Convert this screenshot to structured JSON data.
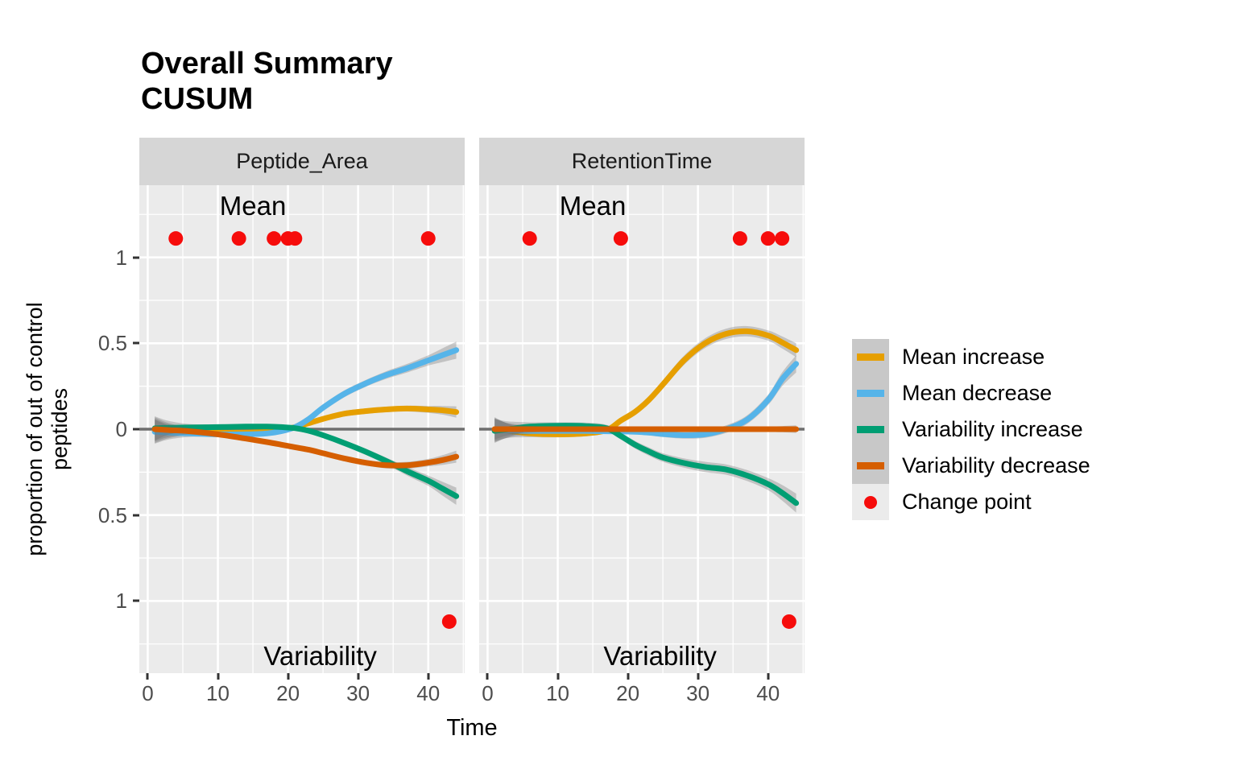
{
  "title": {
    "line1": "Overall Summary",
    "line2": "CUSUM"
  },
  "axes": {
    "x_label": "Time",
    "y_label_line1": "proportion of out of control",
    "y_label_line2": "peptides",
    "x_ticks": [
      0,
      10,
      20,
      30,
      40
    ],
    "y_ticks": [
      {
        "value": 1,
        "label": "1"
      },
      {
        "value": 0.5,
        "label": "0.5"
      },
      {
        "value": 0,
        "label": "0"
      },
      {
        "value": -0.5,
        "label": "0.5"
      },
      {
        "value": -1,
        "label": "1"
      }
    ]
  },
  "colors": {
    "panel_bg": "#ebebeb",
    "strip_bg": "#d6d6d6",
    "grid": "#ffffff",
    "zero_line": "#6e6e6e",
    "ribbon": "rgba(100,100,100,0.30)",
    "tick_text": "#4d4d4d",
    "mean_increase": "#E69F00",
    "mean_decrease": "#56B4E9",
    "variability_increase": "#009E73",
    "variability_decrease": "#D55E00",
    "change_point": "#F60C0B"
  },
  "legend": {
    "items": [
      {
        "label": "Mean increase",
        "type": "line",
        "color": "#E69F00"
      },
      {
        "label": "Mean decrease",
        "type": "line",
        "color": "#56B4E9"
      },
      {
        "label": "Variability increase",
        "type": "line",
        "color": "#009E73"
      },
      {
        "label": "Variability decrease",
        "type": "line",
        "color": "#D55E00"
      },
      {
        "label": "Change point",
        "type": "point",
        "color": "#F60C0B"
      }
    ]
  },
  "chart_data": {
    "type": "line",
    "title": "Overall Summary CUSUM",
    "xlabel": "Time",
    "ylabel": "proportion of out of control peptides",
    "x_domain": [
      -1.2,
      45.2
    ],
    "y_domain": [
      -1.42,
      1.42
    ],
    "x_major_ticks": [
      0,
      10,
      20,
      30,
      40
    ],
    "x_minor_ticks": [
      5,
      15,
      25,
      35,
      45
    ],
    "y_major_ticks": [
      -1,
      -0.5,
      0,
      0.5,
      1
    ],
    "y_minor_ticks": [
      -1.25,
      -0.75,
      -0.25,
      0.25,
      0.75,
      1.25
    ],
    "zero_line": 0,
    "change_point_value": {
      "mean": 1.11,
      "variability": -1.12
    },
    "facets": [
      {
        "title": "Peptide_Area",
        "annotations": [
          {
            "text": "Mean",
            "t": 15,
            "v": 1.3
          },
          {
            "text": "Variability",
            "t": 24.6,
            "v": -1.32
          }
        ],
        "change_points_mean": [
          4,
          13,
          18,
          20,
          21,
          40
        ],
        "change_points_variability": [
          43
        ],
        "series": [
          {
            "name": "Mean increase",
            "color": "#E69F00",
            "points": [
              [
                1,
                -0.01,
                0.07
              ],
              [
                3,
                -0.012,
                0.04
              ],
              [
                6,
                -0.015,
                0.02
              ],
              [
                10,
                -0.02,
                0.016
              ],
              [
                14,
                -0.02,
                0.015
              ],
              [
                17,
                -0.015,
                0.015
              ],
              [
                19,
                -0.005,
                0.015
              ],
              [
                21,
                0.012,
                0.015
              ],
              [
                23,
                0.035,
                0.015
              ],
              [
                25,
                0.06,
                0.015
              ],
              [
                28,
                0.09,
                0.016
              ],
              [
                31,
                0.105,
                0.016
              ],
              [
                34,
                0.115,
                0.016
              ],
              [
                37,
                0.12,
                0.017
              ],
              [
                40,
                0.115,
                0.02
              ],
              [
                42,
                0.11,
                0.025
              ],
              [
                44,
                0.1,
                0.033
              ]
            ]
          },
          {
            "name": "Mean decrease",
            "color": "#56B4E9",
            "points": [
              [
                1,
                -0.015,
                0.07
              ],
              [
                3,
                -0.02,
                0.04
              ],
              [
                6,
                -0.025,
                0.02
              ],
              [
                10,
                -0.03,
                0.016
              ],
              [
                14,
                -0.03,
                0.015
              ],
              [
                17,
                -0.025,
                0.015
              ],
              [
                19,
                -0.012,
                0.016
              ],
              [
                21,
                0.012,
                0.018
              ],
              [
                23,
                0.06,
                0.02
              ],
              [
                25,
                0.125,
                0.02
              ],
              [
                28,
                0.205,
                0.02
              ],
              [
                31,
                0.265,
                0.02
              ],
              [
                34,
                0.315,
                0.022
              ],
              [
                37,
                0.355,
                0.025
              ],
              [
                40,
                0.4,
                0.03
              ],
              [
                42,
                0.43,
                0.04
              ],
              [
                44,
                0.46,
                0.05
              ]
            ]
          },
          {
            "name": "Variability increase",
            "color": "#009E73",
            "points": [
              [
                1,
                0.005,
                0.07
              ],
              [
                3,
                0.008,
                0.04
              ],
              [
                6,
                0.01,
                0.02
              ],
              [
                10,
                0.012,
                0.016
              ],
              [
                14,
                0.015,
                0.015
              ],
              [
                17,
                0.015,
                0.015
              ],
              [
                19,
                0.012,
                0.015
              ],
              [
                21,
                0.006,
                0.015
              ],
              [
                23,
                -0.01,
                0.015
              ],
              [
                25,
                -0.035,
                0.015
              ],
              [
                28,
                -0.08,
                0.016
              ],
              [
                31,
                -0.13,
                0.018
              ],
              [
                34,
                -0.185,
                0.02
              ],
              [
                37,
                -0.245,
                0.025
              ],
              [
                40,
                -0.3,
                0.03
              ],
              [
                42,
                -0.345,
                0.04
              ],
              [
                44,
                -0.39,
                0.05
              ]
            ]
          },
          {
            "name": "Variability decrease",
            "color": "#D55E00",
            "points": [
              [
                1,
                0.0,
                0.07
              ],
              [
                3,
                -0.005,
                0.04
              ],
              [
                6,
                -0.012,
                0.02
              ],
              [
                10,
                -0.03,
                0.016
              ],
              [
                14,
                -0.055,
                0.015
              ],
              [
                17,
                -0.075,
                0.015
              ],
              [
                19,
                -0.09,
                0.015
              ],
              [
                21,
                -0.105,
                0.015
              ],
              [
                23,
                -0.12,
                0.015
              ],
              [
                25,
                -0.14,
                0.015
              ],
              [
                28,
                -0.17,
                0.016
              ],
              [
                31,
                -0.195,
                0.016
              ],
              [
                34,
                -0.21,
                0.018
              ],
              [
                37,
                -0.21,
                0.02
              ],
              [
                40,
                -0.195,
                0.022
              ],
              [
                42,
                -0.18,
                0.028
              ],
              [
                44,
                -0.16,
                0.035
              ]
            ]
          }
        ]
      },
      {
        "title": "RetentionTime",
        "annotations": [
          {
            "text": "Mean",
            "t": 15,
            "v": 1.3
          },
          {
            "text": "Variability",
            "t": 24.6,
            "v": -1.32
          }
        ],
        "change_points_mean": [
          6,
          19,
          36,
          40,
          42
        ],
        "change_points_variability": [
          43
        ],
        "series": [
          {
            "name": "Mean increase",
            "color": "#E69F00",
            "points": [
              [
                1,
                0.0,
                0.07
              ],
              [
                3,
                -0.01,
                0.04
              ],
              [
                6,
                -0.025,
                0.022
              ],
              [
                10,
                -0.03,
                0.018
              ],
              [
                14,
                -0.025,
                0.016
              ],
              [
                17,
                -0.005,
                0.016
              ],
              [
                19,
                0.05,
                0.018
              ],
              [
                21,
                0.1,
                0.02
              ],
              [
                23,
                0.17,
                0.022
              ],
              [
                25,
                0.26,
                0.025
              ],
              [
                28,
                0.4,
                0.027
              ],
              [
                31,
                0.5,
                0.028
              ],
              [
                34,
                0.555,
                0.03
              ],
              [
                37,
                0.57,
                0.03
              ],
              [
                40,
                0.545,
                0.03
              ],
              [
                42,
                0.505,
                0.035
              ],
              [
                44,
                0.46,
                0.04
              ]
            ]
          },
          {
            "name": "Mean decrease",
            "color": "#56B4E9",
            "points": [
              [
                1,
                -0.005,
                0.07
              ],
              [
                3,
                -0.008,
                0.04
              ],
              [
                6,
                -0.01,
                0.02
              ],
              [
                10,
                -0.01,
                0.016
              ],
              [
                14,
                -0.01,
                0.015
              ],
              [
                17,
                -0.012,
                0.015
              ],
              [
                19,
                -0.013,
                0.015
              ],
              [
                21,
                -0.015,
                0.015
              ],
              [
                23,
                -0.02,
                0.016
              ],
              [
                25,
                -0.028,
                0.018
              ],
              [
                28,
                -0.035,
                0.02
              ],
              [
                31,
                -0.03,
                0.02
              ],
              [
                34,
                0.0,
                0.022
              ],
              [
                37,
                0.055,
                0.025
              ],
              [
                40,
                0.17,
                0.03
              ],
              [
                42,
                0.29,
                0.04
              ],
              [
                44,
                0.38,
                0.05
              ]
            ]
          },
          {
            "name": "Variability increase",
            "color": "#009E73",
            "points": [
              [
                1,
                -0.01,
                0.07
              ],
              [
                3,
                0.0,
                0.045
              ],
              [
                6,
                0.015,
                0.025
              ],
              [
                10,
                0.02,
                0.02
              ],
              [
                14,
                0.018,
                0.02
              ],
              [
                17,
                0.005,
                0.02
              ],
              [
                19,
                -0.04,
                0.02
              ],
              [
                21,
                -0.09,
                0.022
              ],
              [
                23,
                -0.13,
                0.024
              ],
              [
                25,
                -0.165,
                0.025
              ],
              [
                28,
                -0.197,
                0.027
              ],
              [
                31,
                -0.22,
                0.03
              ],
              [
                34,
                -0.235,
                0.03
              ],
              [
                37,
                -0.27,
                0.032
              ],
              [
                40,
                -0.32,
                0.035
              ],
              [
                42,
                -0.37,
                0.045
              ],
              [
                44,
                -0.43,
                0.055
              ]
            ]
          },
          {
            "name": "Variability decrease",
            "color": "#D55E00",
            "points": [
              [
                1,
                0.0,
                0.06
              ],
              [
                3,
                0.0,
                0.035
              ],
              [
                6,
                0.0,
                0.02
              ],
              [
                10,
                0.0,
                0.012
              ],
              [
                14,
                0.0,
                0.012
              ],
              [
                19,
                0.0,
                0.012
              ],
              [
                25,
                0.0,
                0.012
              ],
              [
                31,
                0.0,
                0.012
              ],
              [
                37,
                0.0,
                0.013
              ],
              [
                40,
                0.0,
                0.015
              ],
              [
                42,
                0.0,
                0.018
              ],
              [
                44,
                0.0,
                0.022
              ]
            ]
          }
        ]
      }
    ]
  }
}
